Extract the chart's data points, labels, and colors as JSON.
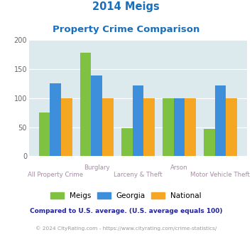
{
  "title_line1": "2014 Meigs",
  "title_line2": "Property Crime Comparison",
  "title_color": "#1a6fba",
  "categories": [
    "All Property Crime",
    "Burglary",
    "Larceny & Theft",
    "Arson",
    "Motor Vehicle Theft"
  ],
  "top_labels": [
    [
      1,
      "Burglary"
    ],
    [
      3,
      "Arson"
    ]
  ],
  "bottom_labels": [
    [
      0,
      "All Property Crime"
    ],
    [
      2,
      "Larceny & Theft"
    ],
    [
      4,
      "Motor Vehicle Theft"
    ]
  ],
  "meigs": [
    75,
    178,
    48,
    100,
    47
  ],
  "georgia": [
    126,
    139,
    122,
    100,
    122
  ],
  "national": [
    100,
    100,
    100,
    100,
    100
  ],
  "meigs_color": "#7fc241",
  "georgia_color": "#3d8edb",
  "national_color": "#f5a623",
  "plot_bg": "#dce9ed",
  "ylim": [
    0,
    200
  ],
  "yticks": [
    0,
    50,
    100,
    150,
    200
  ],
  "footnote1": "Compared to U.S. average. (U.S. average equals 100)",
  "footnote2": "© 2024 CityRating.com - https://www.cityrating.com/crime-statistics/",
  "footnote1_color": "#222299",
  "footnote2_color": "#999999",
  "legend_labels": [
    "Meigs",
    "Georgia",
    "National"
  ],
  "xlabel_top_color": "#aa88aa",
  "xlabel_bot_color": "#aa88aa"
}
